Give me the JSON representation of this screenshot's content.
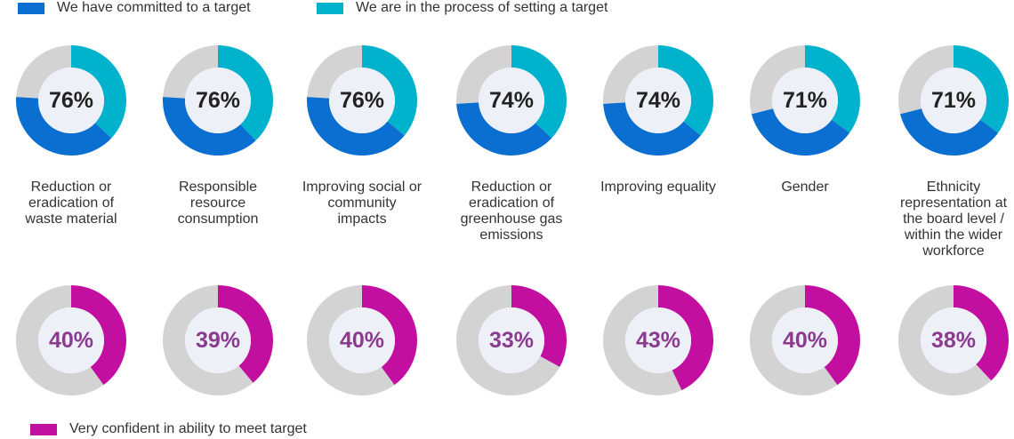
{
  "chart_data": [
    {
      "type": "donut",
      "categories": [
        "Reduction or eradication of waste material",
        "Responsible resource consumption",
        "Improving social or community impacts",
        "Reduction or eradication of greenhouse gas emissions",
        "Improving equality",
        "Gender",
        "Ethnicity representation at the board level / within the wider workforce"
      ],
      "values": [
        76,
        76,
        76,
        74,
        74,
        71,
        71
      ],
      "value_labels": [
        "76%",
        "76%",
        "76%",
        "74%",
        "74%",
        "71%",
        "71%"
      ],
      "series": [
        {
          "name": "We have committed  to a target",
          "color": "#0a6fd0",
          "values": [
            39,
            38,
            40,
            37,
            38,
            36,
            36
          ]
        },
        {
          "name": "We are in the process  of setting a target",
          "color": "#00b2cb",
          "values": [
            37,
            38,
            36,
            37,
            36,
            35,
            35
          ]
        }
      ]
    },
    {
      "type": "donut",
      "series": [
        {
          "name": "Very confident in ability to meet target",
          "color": "#c20fa0",
          "values": [
            40,
            39,
            40,
            33,
            43,
            40,
            38
          ],
          "value_labels": [
            "40%",
            "39%",
            "40%",
            "33%",
            "43%",
            "40%",
            "38%"
          ]
        }
      ]
    }
  ]
}
